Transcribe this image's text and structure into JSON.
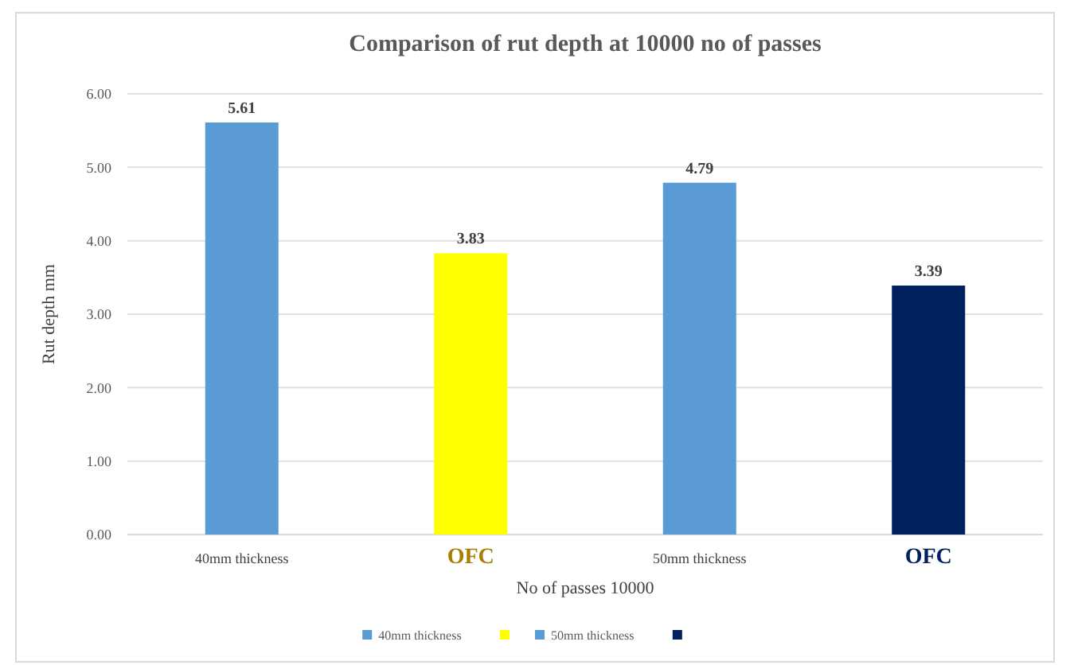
{
  "chart_data": {
    "type": "bar",
    "title": "Comparison of rut depth at 10000 no of passes",
    "xlabel": "No of passes 10000",
    "ylabel": "Rut depth mm",
    "categories": [
      "40mm thickness",
      "OFC",
      "50mm thickness",
      "OFC"
    ],
    "series": [
      {
        "name": "40mm thickness",
        "color": "#5b9bd5",
        "values": [
          5.61,
          null,
          null,
          null
        ]
      },
      {
        "color": "#ffff00",
        "values": [
          null,
          3.83,
          null,
          null
        ]
      },
      {
        "name": "50mm thickness",
        "color": "#5b9bd5",
        "values": [
          null,
          null,
          4.79,
          null
        ]
      },
      {
        "color": "#002060",
        "values": [
          null,
          null,
          null,
          3.39
        ]
      }
    ],
    "ylim": [
      0,
      6
    ],
    "yticks": [
      {
        "value": 0,
        "label": "0.00"
      },
      {
        "value": 1,
        "label": "1.00"
      },
      {
        "value": 2,
        "label": "2.00"
      },
      {
        "value": 3,
        "label": "3.00"
      },
      {
        "value": 4,
        "label": "4.00"
      },
      {
        "value": 5,
        "label": "5.00"
      },
      {
        "value": 6,
        "label": "6.00"
      }
    ],
    "grid": "y",
    "data_labels": true,
    "legend": "bottom"
  }
}
